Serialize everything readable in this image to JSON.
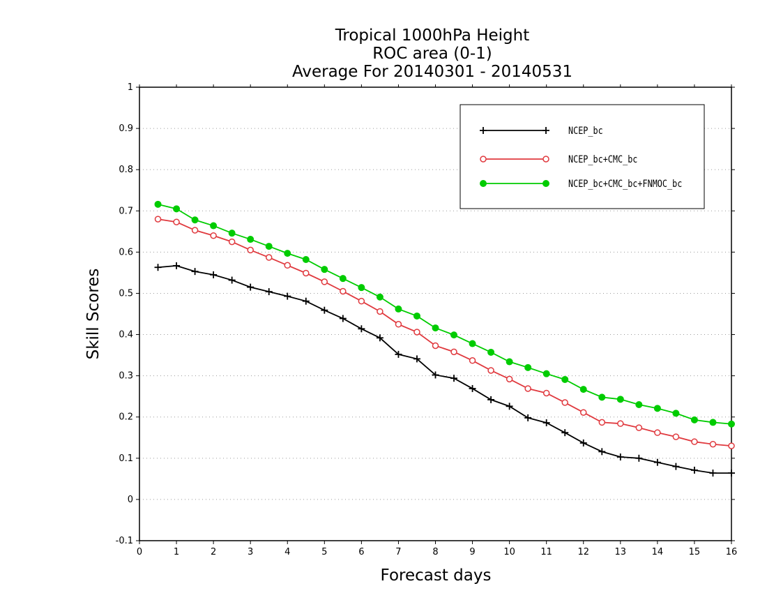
{
  "chart_data": {
    "type": "line",
    "title": [
      "Tropical 1000hPa Height",
      "ROC area (0-1)",
      "Average For 20140301 - 20140531"
    ],
    "xlabel": "Forecast days",
    "ylabel": "Skill Scores",
    "xlim": [
      0,
      16
    ],
    "ylim": [
      -0.1,
      1
    ],
    "xticks": [
      "0",
      "1",
      "2",
      "3",
      "4",
      "5",
      "6",
      "7",
      "8",
      "9",
      "10",
      "11",
      "12",
      "13",
      "14",
      "15",
      "16"
    ],
    "yticks": [
      "-0.1",
      "0",
      "0.1",
      "0.2",
      "0.3",
      "0.4",
      "0.5",
      "0.6",
      "0.7",
      "0.8",
      "0.9",
      "1"
    ],
    "grid": "horizontal-dotted",
    "legend_position": "top-right",
    "x": [
      0.5,
      1,
      1.5,
      2,
      2.5,
      3,
      3.5,
      4,
      4.5,
      5,
      5.5,
      6,
      6.5,
      7,
      7.5,
      8,
      8.5,
      9,
      9.5,
      10,
      10.5,
      11,
      11.5,
      12,
      12.5,
      13,
      13.5,
      14,
      14.5,
      15,
      15.5,
      16
    ],
    "series": [
      {
        "name": "NCEP_bc",
        "color": "#000000",
        "marker": "plus",
        "values": [
          0.563,
          0.567,
          0.553,
          0.545,
          0.532,
          0.515,
          0.504,
          0.493,
          0.481,
          0.459,
          0.439,
          0.414,
          0.392,
          0.352,
          0.341,
          0.302,
          0.294,
          0.269,
          0.242,
          0.226,
          0.198,
          0.186,
          0.162,
          0.137,
          0.116,
          0.103,
          0.1,
          0.09,
          0.08,
          0.071,
          0.064,
          0.064
        ]
      },
      {
        "name": "NCEP_bc+CMC_bc",
        "color": "#e0393e",
        "marker": "open-circle",
        "values": [
          0.68,
          0.673,
          0.653,
          0.64,
          0.625,
          0.605,
          0.587,
          0.568,
          0.549,
          0.528,
          0.505,
          0.481,
          0.456,
          0.425,
          0.406,
          0.373,
          0.358,
          0.337,
          0.313,
          0.292,
          0.269,
          0.258,
          0.235,
          0.211,
          0.187,
          0.184,
          0.174,
          0.162,
          0.152,
          0.14,
          0.134,
          0.13
        ]
      },
      {
        "name": "NCEP_bc+CMC_bc+FNMOC_bc",
        "color": "#00cc00",
        "marker": "filled-circle",
        "values": [
          0.716,
          0.705,
          0.678,
          0.664,
          0.646,
          0.631,
          0.614,
          0.597,
          0.582,
          0.558,
          0.536,
          0.514,
          0.491,
          0.462,
          0.445,
          0.416,
          0.399,
          0.378,
          0.357,
          0.334,
          0.32,
          0.305,
          0.291,
          0.267,
          0.248,
          0.243,
          0.23,
          0.221,
          0.209,
          0.193,
          0.187,
          0.183
        ]
      }
    ]
  }
}
